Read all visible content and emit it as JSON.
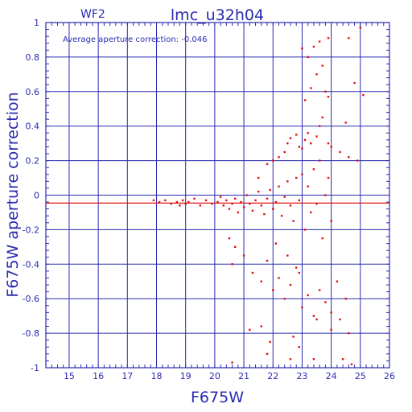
{
  "chart_data": {
    "type": "scatter",
    "title": "lmc_u32h04",
    "subtitle": "WF2",
    "annotation": "Average aperture correction: -0.046",
    "xlabel": "F675W",
    "ylabel": "F675W aperture correction",
    "xlim": [
      14.2,
      26
    ],
    "ylim": [
      -1,
      1
    ],
    "xticks": [
      "15",
      "16",
      "17",
      "18",
      "19",
      "20",
      "21",
      "22",
      "23",
      "24",
      "25",
      "26"
    ],
    "yticks": [
      "-1",
      "-0.8",
      "-0.6",
      "-0.4",
      "-0.2",
      "0",
      "0.2",
      "0.4",
      "0.6",
      "0.8",
      "1"
    ],
    "grid": true,
    "reference_line": {
      "y": -0.046
    },
    "colors": {
      "axes": "#2a2ab0",
      "points": "#e01010",
      "reference_line": "#e01010"
    },
    "series": [
      {
        "points": [
          [
            17.9,
            -0.03
          ],
          [
            18.1,
            -0.04
          ],
          [
            18.3,
            -0.03
          ],
          [
            18.5,
            -0.05
          ],
          [
            18.7,
            -0.04
          ],
          [
            18.8,
            -0.06
          ],
          [
            18.9,
            -0.03
          ],
          [
            19.0,
            -0.05
          ],
          [
            19.1,
            -0.04
          ],
          [
            19.3,
            -0.02
          ],
          [
            19.5,
            -0.06
          ],
          [
            19.7,
            -0.03
          ],
          [
            19.9,
            -0.05
          ],
          [
            20.1,
            -0.04
          ],
          [
            20.2,
            -0.01
          ],
          [
            20.3,
            -0.06
          ],
          [
            20.4,
            -0.03
          ],
          [
            20.5,
            -0.08
          ],
          [
            20.6,
            -0.05
          ],
          [
            20.7,
            -0.02
          ],
          [
            20.8,
            -0.1
          ],
          [
            20.9,
            -0.04
          ],
          [
            21.0,
            -0.07
          ],
          [
            21.1,
            0.0
          ],
          [
            21.2,
            -0.05
          ],
          [
            21.3,
            -0.09
          ],
          [
            21.4,
            -0.03
          ],
          [
            21.5,
            0.02
          ],
          [
            21.6,
            -0.06
          ],
          [
            21.7,
            -0.11
          ],
          [
            21.8,
            -0.02
          ],
          [
            21.9,
            0.03
          ],
          [
            22.0,
            -0.08
          ],
          [
            22.1,
            -0.04
          ],
          [
            22.2,
            0.05
          ],
          [
            22.3,
            -0.12
          ],
          [
            22.4,
            -0.01
          ],
          [
            22.5,
            0.08
          ],
          [
            22.6,
            -0.06
          ],
          [
            22.7,
            -0.15
          ],
          [
            22.8,
            0.1
          ],
          [
            22.9,
            -0.03
          ],
          [
            23.0,
            0.12
          ],
          [
            23.1,
            -0.2
          ],
          [
            23.2,
            0.05
          ],
          [
            23.3,
            -0.1
          ],
          [
            23.4,
            0.15
          ],
          [
            23.5,
            -0.05
          ],
          [
            23.6,
            0.2
          ],
          [
            23.7,
            -0.25
          ],
          [
            23.8,
            0.0
          ],
          [
            23.9,
            0.1
          ],
          [
            24.0,
            -0.15
          ],
          [
            21.5,
            0.1
          ],
          [
            21.8,
            0.18
          ],
          [
            22.0,
            0.2
          ],
          [
            22.2,
            0.22
          ],
          [
            22.4,
            0.25
          ],
          [
            22.5,
            0.3
          ],
          [
            22.6,
            0.33
          ],
          [
            22.8,
            0.35
          ],
          [
            22.9,
            0.28
          ],
          [
            23.0,
            0.27
          ],
          [
            23.1,
            0.32
          ],
          [
            23.2,
            0.36
          ],
          [
            23.3,
            0.3
          ],
          [
            23.5,
            0.34
          ],
          [
            23.6,
            0.4
          ],
          [
            23.7,
            0.45
          ],
          [
            23.9,
            0.3
          ],
          [
            24.0,
            0.28
          ],
          [
            24.3,
            0.25
          ],
          [
            24.6,
            0.22
          ],
          [
            24.9,
            0.2
          ],
          [
            23.1,
            0.55
          ],
          [
            23.3,
            0.62
          ],
          [
            23.5,
            0.7
          ],
          [
            23.7,
            0.75
          ],
          [
            23.8,
            0.6
          ],
          [
            23.9,
            0.57
          ],
          [
            23.2,
            0.8
          ],
          [
            23.4,
            0.86
          ],
          [
            23.6,
            0.89
          ],
          [
            23.0,
            0.85
          ],
          [
            23.9,
            0.91
          ],
          [
            24.6,
            0.91
          ],
          [
            25.0,
            0.97
          ],
          [
            24.8,
            0.65
          ],
          [
            25.1,
            0.58
          ],
          [
            24.5,
            0.42
          ],
          [
            20.5,
            -0.25
          ],
          [
            20.6,
            -0.4
          ],
          [
            20.7,
            -0.3
          ],
          [
            21.0,
            -0.35
          ],
          [
            21.3,
            -0.45
          ],
          [
            21.6,
            -0.5
          ],
          [
            21.8,
            -0.38
          ],
          [
            22.0,
            -0.55
          ],
          [
            22.2,
            -0.48
          ],
          [
            22.4,
            -0.6
          ],
          [
            22.6,
            -0.52
          ],
          [
            22.8,
            -0.42
          ],
          [
            23.0,
            -0.65
          ],
          [
            23.2,
            -0.58
          ],
          [
            23.4,
            -0.7
          ],
          [
            23.6,
            -0.55
          ],
          [
            23.8,
            -0.62
          ],
          [
            24.0,
            -0.68
          ],
          [
            24.2,
            -0.5
          ],
          [
            24.5,
            -0.6
          ],
          [
            21.2,
            -0.78
          ],
          [
            21.6,
            -0.76
          ],
          [
            21.9,
            -0.85
          ],
          [
            22.7,
            -0.82
          ],
          [
            22.9,
            -0.88
          ],
          [
            23.5,
            -0.72
          ],
          [
            24.0,
            -0.78
          ],
          [
            24.3,
            -0.72
          ],
          [
            24.6,
            -0.8
          ],
          [
            20.6,
            -0.97
          ],
          [
            21.8,
            -0.92
          ],
          [
            22.6,
            -0.95
          ],
          [
            23.4,
            -0.95
          ],
          [
            24.4,
            -0.95
          ],
          [
            24.7,
            -0.98
          ],
          [
            22.9,
            -0.45
          ],
          [
            22.5,
            -0.35
          ],
          [
            22.1,
            -0.28
          ]
        ]
      }
    ]
  }
}
